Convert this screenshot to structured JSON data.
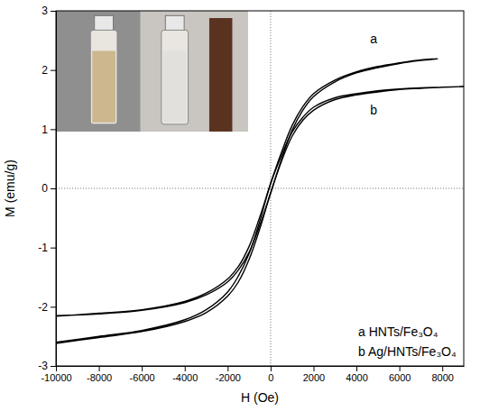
{
  "chart_data": {
    "type": "line",
    "x_label": "H (Oe)",
    "y_label": "M (emu/g)",
    "xlim": [
      -10000,
      9000
    ],
    "xticks": [
      -10000,
      -8000,
      -6000,
      -4000,
      -2000,
      0,
      2000,
      4000,
      6000,
      8000
    ],
    "ylim": [
      -3,
      3
    ],
    "yticks": [
      -3,
      -2,
      -1,
      0,
      1,
      2,
      3
    ],
    "grid": false,
    "legend": "lower right",
    "series": [
      {
        "name": "a HNTs/Fe₃O₄",
        "color": "#000000",
        "x": [
          -10000,
          -8000,
          -6000,
          -4000,
          -3000,
          -2000,
          -1500,
          -1000,
          -500,
          0,
          500,
          1000,
          1500,
          2000,
          3000,
          4000,
          5000,
          6000,
          7000,
          7800,
          7000,
          6000,
          5000,
          4000,
          3000,
          2000,
          1500,
          1000,
          500,
          0,
          -500,
          -1000,
          -1500,
          -2000,
          -3000,
          -4000,
          -6000,
          -8000,
          -10000
        ],
        "values": [
          -2.15,
          -2.12,
          -2.06,
          -1.93,
          -1.8,
          -1.58,
          -1.38,
          -1.08,
          -0.62,
          -0.08,
          0.48,
          0.98,
          1.32,
          1.55,
          1.8,
          1.95,
          2.04,
          2.11,
          2.16,
          2.19,
          2.17,
          2.12,
          2.06,
          1.97,
          1.83,
          1.6,
          1.38,
          1.06,
          0.6,
          0.08,
          -0.48,
          -0.98,
          -1.32,
          -1.53,
          -1.77,
          -1.91,
          -2.05,
          -2.11,
          -2.16
        ]
      },
      {
        "name": "b Ag/HNTs/Fe₃O₄",
        "color": "#000000",
        "x": [
          -10000,
          -8000,
          -6000,
          -4000,
          -3000,
          -2000,
          -1500,
          -1000,
          -500,
          0,
          500,
          1000,
          1500,
          2000,
          3000,
          4000,
          5000,
          6000,
          7000,
          8000,
          9000,
          8000,
          7000,
          6000,
          5000,
          4000,
          3000,
          2000,
          1500,
          1000,
          500,
          0,
          -500,
          -1000,
          -1500,
          -2000,
          -3000,
          -4000,
          -6000,
          -8000,
          -10000
        ],
        "values": [
          -2.62,
          -2.52,
          -2.42,
          -2.25,
          -2.1,
          -1.82,
          -1.58,
          -1.2,
          -0.68,
          -0.08,
          0.45,
          0.88,
          1.15,
          1.32,
          1.5,
          1.58,
          1.63,
          1.67,
          1.69,
          1.71,
          1.72,
          1.71,
          1.7,
          1.68,
          1.65,
          1.6,
          1.53,
          1.37,
          1.2,
          0.95,
          0.55,
          0.08,
          -0.55,
          -1.1,
          -1.48,
          -1.75,
          -2.05,
          -2.22,
          -2.4,
          -2.5,
          -2.6
        ]
      }
    ],
    "annotations": [
      {
        "text": "a",
        "x": 4800,
        "y": 2.45
      },
      {
        "text": "b",
        "x": 4800,
        "y": 1.25
      }
    ]
  }
}
